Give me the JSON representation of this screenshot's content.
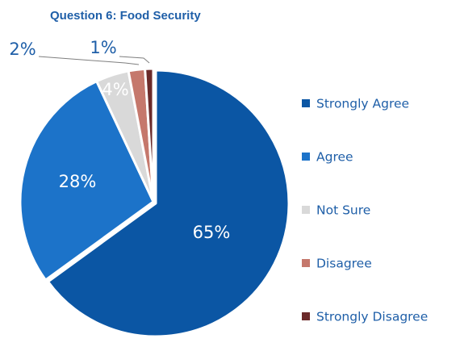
{
  "chart_data": {
    "type": "pie",
    "title": "Question 6: Food Security",
    "categories": [
      "Strongly Agree",
      "Agree",
      "Not Sure",
      "Disagree",
      "Strongly Disagree"
    ],
    "values": [
      65,
      28,
      4,
      2,
      1
    ],
    "value_labels": [
      "65%",
      "28%",
      "4%",
      "2%",
      "1%"
    ],
    "colors": [
      "#0b56a4",
      "#1c73c9",
      "#d9d9d9",
      "#c5786c",
      "#6b2a2a"
    ],
    "label_colors": [
      "#ffffff",
      "#ffffff",
      "#ffffff",
      "#1f5fa8",
      "#1f5fa8"
    ],
    "legend_position": "right",
    "exploded_slice": "Strongly Agree"
  }
}
